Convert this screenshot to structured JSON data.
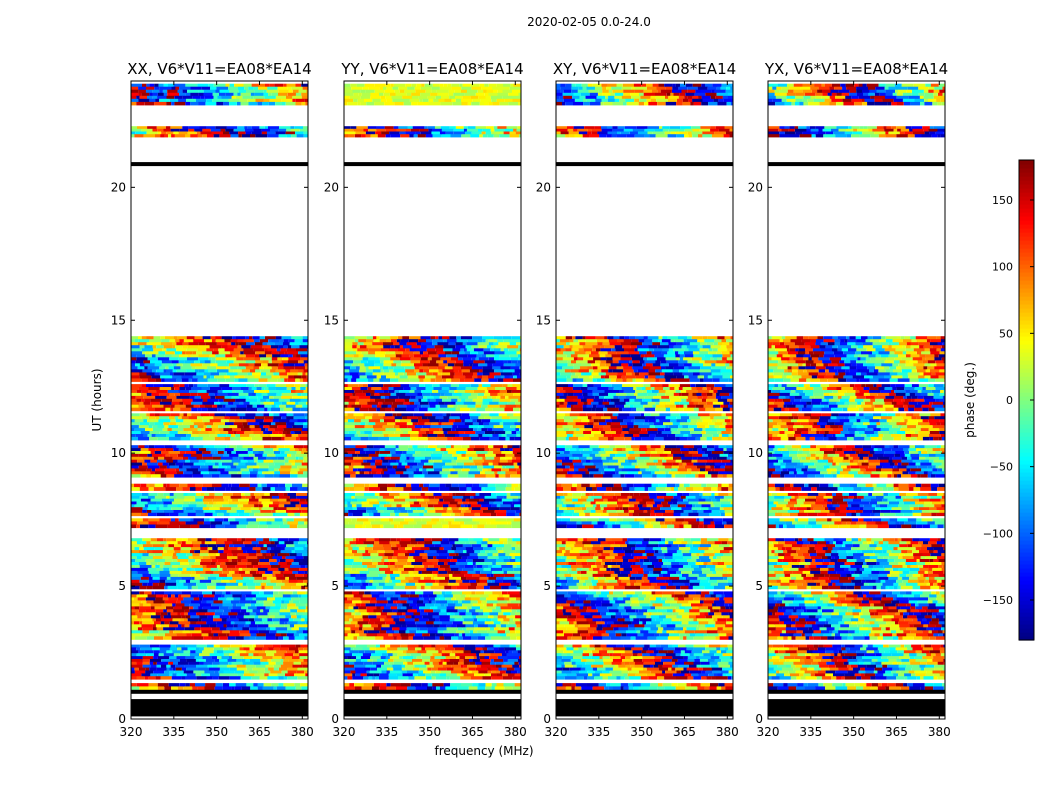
{
  "figure": {
    "suptitle": "2020-02-05 0.0-24.0",
    "xlabel": "frequency (MHz)",
    "ylabel": "UT (hours)"
  },
  "chart_data": {
    "type": "heatmap",
    "title": "2020-02-05 0.0-24.0",
    "xlabel": "frequency (MHz)",
    "ylabel": "UT (hours)",
    "xlim": [
      320,
      382
    ],
    "ylim": [
      0,
      24
    ],
    "x_ticks": [
      320,
      335,
      350,
      365,
      380
    ],
    "y_ticks": [
      0,
      5,
      10,
      15,
      20
    ],
    "panels": [
      {
        "title": "XX, V6*V11=EA08*EA14",
        "polarization": "XX"
      },
      {
        "title": "YY, V6*V11=EA08*EA14",
        "polarization": "YY"
      },
      {
        "title": "XY, V6*V11=EA08*EA14",
        "polarization": "XY"
      },
      {
        "title": "YX, V6*V11=EA08*EA14",
        "polarization": "YX"
      }
    ],
    "data_ut_ranges": [
      [
        1.1,
        1.35
      ],
      [
        1.5,
        2.8
      ],
      [
        3.0,
        4.8
      ],
      [
        4.9,
        6.8
      ],
      [
        7.2,
        7.55
      ],
      [
        7.65,
        8.5
      ],
      [
        8.6,
        8.85
      ],
      [
        9.1,
        10.3
      ],
      [
        10.5,
        11.5
      ],
      [
        11.6,
        12.6
      ],
      [
        12.7,
        14.4
      ],
      [
        21.9,
        22.3
      ],
      [
        23.1,
        23.9
      ]
    ],
    "flagged_ut_ranges": [
      [
        0.1,
        0.75
      ],
      [
        0.95,
        1.1
      ],
      [
        20.8,
        20.95
      ]
    ],
    "colorbar": {
      "label": "phase (deg.)",
      "range": [
        -180,
        180
      ],
      "ticks": [
        -150,
        -100,
        -50,
        0,
        50,
        100,
        150
      ],
      "tick_labels": [
        "−150",
        "−100",
        "−50",
        "0",
        "50",
        "100",
        "150"
      ],
      "colormap": "jet"
    }
  }
}
